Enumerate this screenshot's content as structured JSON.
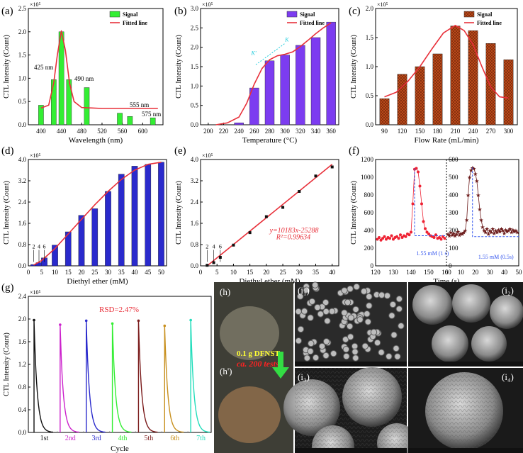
{
  "colors": {
    "green": "#33ee33",
    "purple": "#7c3cf0",
    "orange": "#c8501e",
    "blue": "#2a2acc",
    "fit": "#e8303a",
    "red_dot": "#ee2233",
    "star": "#6b1a1a",
    "dash": "#3355ee",
    "magenta": "#cc22cc",
    "cyan": "#22ccdd",
    "black": "#111111"
  },
  "chart_data": [
    {
      "type": "bar",
      "panel": "(a)",
      "title": "",
      "xlabel": "Wavelength (nm)",
      "ylabel": "CTL Intensity (Count)",
      "exponent": "×10⁵",
      "xlim": [
        375,
        640
      ],
      "ylim": [
        0,
        2.5
      ],
      "xticks": [
        400,
        440,
        480,
        520,
        560,
        600
      ],
      "yticks": [
        0,
        0.5,
        1.0,
        1.5,
        2.0,
        2.5
      ],
      "x": [
        400,
        425,
        440,
        455,
        490,
        555,
        575,
        620
      ],
      "values": [
        0.42,
        0.97,
        2.0,
        0.97,
        0.8,
        0.25,
        0.18,
        0.15
      ],
      "barwidth": 10,
      "fit": [
        [
          400,
          0.36
        ],
        [
          415,
          0.42
        ],
        [
          425,
          0.9
        ],
        [
          432,
          1.5
        ],
        [
          440,
          2.02
        ],
        [
          448,
          1.6
        ],
        [
          456,
          0.9
        ],
        [
          465,
          0.5
        ],
        [
          480,
          0.37
        ],
        [
          520,
          0.35
        ],
        [
          560,
          0.35
        ],
        [
          600,
          0.35
        ],
        [
          630,
          0.35
        ]
      ],
      "legend": [
        "Signal",
        "Fitted line"
      ],
      "annotations": [
        "425 nm",
        "490 nm",
        "555 nm",
        "575 nm"
      ]
    },
    {
      "type": "bar",
      "panel": "(b)",
      "title": "",
      "xlabel": "Temperature (°C)",
      "ylabel": "CTL Intensity (Count)",
      "exponent": "×10⁵",
      "xlim": [
        190,
        370
      ],
      "ylim": [
        0,
        3.0
      ],
      "xticks": [
        200,
        220,
        240,
        260,
        280,
        300,
        320,
        340,
        360
      ],
      "yticks": [
        0.0,
        0.5,
        1.0,
        1.5,
        2.0,
        2.5,
        3.0
      ],
      "x": [
        240,
        260,
        280,
        300,
        320,
        340,
        360
      ],
      "values": [
        0.05,
        0.95,
        1.65,
        1.8,
        2.05,
        2.25,
        2.65
      ],
      "barwidth": 12,
      "fit": [
        [
          210,
          0.0
        ],
        [
          225,
          0.05
        ],
        [
          240,
          0.2
        ],
        [
          250,
          0.55
        ],
        [
          260,
          1.05
        ],
        [
          270,
          1.45
        ],
        [
          280,
          1.68
        ],
        [
          290,
          1.78
        ],
        [
          300,
          1.82
        ],
        [
          310,
          1.88
        ],
        [
          320,
          2.02
        ],
        [
          330,
          2.18
        ],
        [
          340,
          2.35
        ],
        [
          350,
          2.5
        ],
        [
          360,
          2.63
        ]
      ],
      "legend": [
        "Signal",
        "Fitted line"
      ],
      "annotations": [
        "K",
        "K'"
      ]
    },
    {
      "type": "bar",
      "panel": "(c)",
      "title": "",
      "xlabel": "Flow Rate (mL/min)",
      "ylabel": "CTL Intensity (Count)",
      "exponent": "×10⁵",
      "xlim": [
        75,
        315
      ],
      "ylim": [
        0,
        2.0
      ],
      "xticks": [
        90,
        120,
        150,
        180,
        210,
        240,
        270,
        300
      ],
      "yticks": [
        0.0,
        0.5,
        1.0,
        1.5,
        2.0
      ],
      "x": [
        90,
        120,
        150,
        180,
        210,
        240,
        270,
        300
      ],
      "values": [
        0.45,
        0.87,
        1.0,
        1.22,
        1.7,
        1.62,
        1.4,
        1.12
      ],
      "barwidth": 16,
      "fit": [
        [
          90,
          0.48
        ],
        [
          110,
          0.56
        ],
        [
          130,
          0.75
        ],
        [
          150,
          1.0
        ],
        [
          170,
          1.3
        ],
        [
          190,
          1.58
        ],
        [
          210,
          1.71
        ],
        [
          225,
          1.62
        ],
        [
          240,
          1.38
        ],
        [
          255,
          1.0
        ],
        [
          270,
          0.65
        ],
        [
          285,
          0.48
        ],
        [
          300,
          0.46
        ]
      ],
      "legend": [
        "Signal",
        "Fitted line"
      ],
      "annotations": []
    },
    {
      "type": "bar",
      "panel": "(d)",
      "title": "",
      "xlabel": "Diethyl ether (mM)",
      "ylabel": "CTL Intensity (Count)",
      "exponent": "×10⁵",
      "xlim": [
        0,
        52
      ],
      "ylim": [
        0,
        4.0
      ],
      "xticks": [
        0,
        5,
        10,
        15,
        20,
        25,
        30,
        35,
        40,
        45,
        50
      ],
      "yticks": [
        0,
        0.8,
        1.6,
        2.4,
        3.2,
        4.0
      ],
      "x": [
        2,
        4,
        6,
        10,
        15,
        20,
        25,
        30,
        35,
        40,
        45,
        50
      ],
      "values": [
        0.05,
        0.12,
        0.3,
        0.78,
        1.28,
        1.9,
        2.15,
        2.8,
        3.45,
        3.75,
        3.82,
        3.9
      ],
      "barwidth": 2.2,
      "fit": [
        [
          2,
          0.03
        ],
        [
          5,
          0.2
        ],
        [
          10,
          0.65
        ],
        [
          15,
          1.2
        ],
        [
          20,
          1.75
        ],
        [
          25,
          2.3
        ],
        [
          30,
          2.8
        ],
        [
          35,
          3.25
        ],
        [
          40,
          3.6
        ],
        [
          45,
          3.82
        ],
        [
          50,
          3.9
        ]
      ],
      "legend": [],
      "annotations": [
        "2",
        "4",
        "6"
      ]
    },
    {
      "type": "scatter",
      "panel": "(e)",
      "title": "",
      "xlabel": "Diethyl ether (mM)",
      "ylabel": "CTL Intensity (Count)",
      "exponent": "×10⁵",
      "xlim": [
        0,
        42
      ],
      "ylim": [
        0,
        4.0
      ],
      "xticks": [
        0,
        5,
        10,
        15,
        20,
        25,
        30,
        35,
        40
      ],
      "yticks": [
        0.0,
        0.8,
        1.6,
        2.4,
        3.2,
        4.0
      ],
      "x": [
        2,
        4,
        6,
        10,
        15,
        20,
        25,
        30,
        35,
        40
      ],
      "values": [
        0.02,
        0.12,
        0.32,
        0.78,
        1.25,
        1.85,
        2.2,
        2.8,
        3.38,
        3.72
      ],
      "fit": [
        [
          2,
          0.0
        ],
        [
          40,
          3.82
        ]
      ],
      "legend": [],
      "annotations": [
        "2",
        "4",
        "6",
        "y=10183x-25288",
        "R²=0.99634"
      ]
    },
    {
      "type": "line",
      "panel": "(f)",
      "title": "",
      "xlabel": "Time (s)",
      "ylabel": "CTL Intensity (Count)",
      "left": {
        "xlim": [
          120,
          160
        ],
        "ylim": [
          0,
          1200
        ],
        "xticks": [
          120,
          130,
          140,
          150,
          160
        ],
        "yticks": [
          0,
          200,
          400,
          600,
          800,
          1000,
          1200
        ],
        "x": [
          121,
          122,
          123,
          124,
          125,
          126,
          127,
          128,
          129,
          130,
          131,
          132,
          133,
          134,
          135,
          136,
          137,
          138,
          139,
          140,
          141,
          142,
          143,
          144,
          145,
          146,
          147,
          148,
          149,
          150,
          151,
          152,
          153,
          154,
          155,
          156,
          157,
          158,
          159
        ],
        "values": [
          300,
          320,
          290,
          310,
          330,
          300,
          320,
          310,
          340,
          300,
          320,
          330,
          310,
          350,
          320,
          340,
          330,
          360,
          350,
          380,
          700,
          1090,
          1100,
          1060,
          900,
          700,
          500,
          420,
          380,
          360,
          340,
          330,
          320,
          350,
          310,
          320,
          300,
          330,
          310
        ],
        "annotation": "1.55 mM (1 s)"
      },
      "right": {
        "xlim": [
          0,
          50
        ],
        "ylim": [
          0,
          600
        ],
        "xticks": [
          0,
          10,
          20,
          30,
          40,
          50
        ],
        "yticks": [
          0,
          100,
          200,
          300,
          400,
          500,
          600
        ],
        "x": [
          1,
          2,
          3,
          4,
          5,
          6,
          7,
          8,
          9,
          10,
          11,
          12,
          13,
          14,
          15,
          16,
          17,
          18,
          19,
          20,
          21,
          22,
          23,
          24,
          25,
          26,
          27,
          28,
          29,
          30,
          31,
          32,
          33,
          34,
          35,
          36,
          37,
          38,
          39,
          40,
          41,
          42,
          43,
          44,
          45,
          46,
          47,
          48,
          49
        ],
        "values": [
          180,
          170,
          190,
          175,
          185,
          170,
          180,
          195,
          175,
          185,
          180,
          190,
          200,
          260,
          400,
          500,
          540,
          555,
          550,
          520,
          480,
          400,
          320,
          260,
          220,
          200,
          190,
          210,
          180,
          200,
          190,
          210,
          185,
          200,
          190,
          205,
          195,
          210,
          200,
          185,
          205,
          195,
          200,
          210,
          190,
          205,
          195,
          200,
          190
        ],
        "annotation": "1.55 mM (0.5s)"
      },
      "xlabel_text": "Time (s)"
    },
    {
      "type": "line",
      "panel": "(g)",
      "title": "",
      "xlabel": "Cycle",
      "ylabel": "CTL Intensity (Count)",
      "exponent": "×10⁵",
      "ylim": [
        0,
        2.4
      ],
      "yticks": [
        0.0,
        0.4,
        0.8,
        1.2,
        1.6,
        2.0,
        2.4
      ],
      "categories": [
        "1st",
        "2nd",
        "3rd",
        "4th",
        "5th",
        "6th",
        "7th"
      ],
      "peaks": [
        1.98,
        1.9,
        1.97,
        1.92,
        1.97,
        1.88,
        1.98
      ],
      "series_colors": [
        "#111111",
        "#cc22cc",
        "#2a2acc",
        "#33ee33",
        "#7a1a1a",
        "#c8901e",
        "#22ddbb"
      ],
      "annotations": [
        "RSD=2.47%"
      ]
    }
  ],
  "panels": {
    "a": "(a)",
    "b": "(b)",
    "c": "(c)",
    "d": "(d)",
    "e": "(e)",
    "f": "(f)",
    "g": "(g)",
    "h": "(h)",
    "h2": "(h')",
    "i1": "(i₁)",
    "i2": "(i₂)",
    "i3": "(i₃)",
    "i4": "(i₄)"
  },
  "photo": {
    "line1": "0.1 g DFNST",
    "line2": "ca. 200 tests"
  }
}
